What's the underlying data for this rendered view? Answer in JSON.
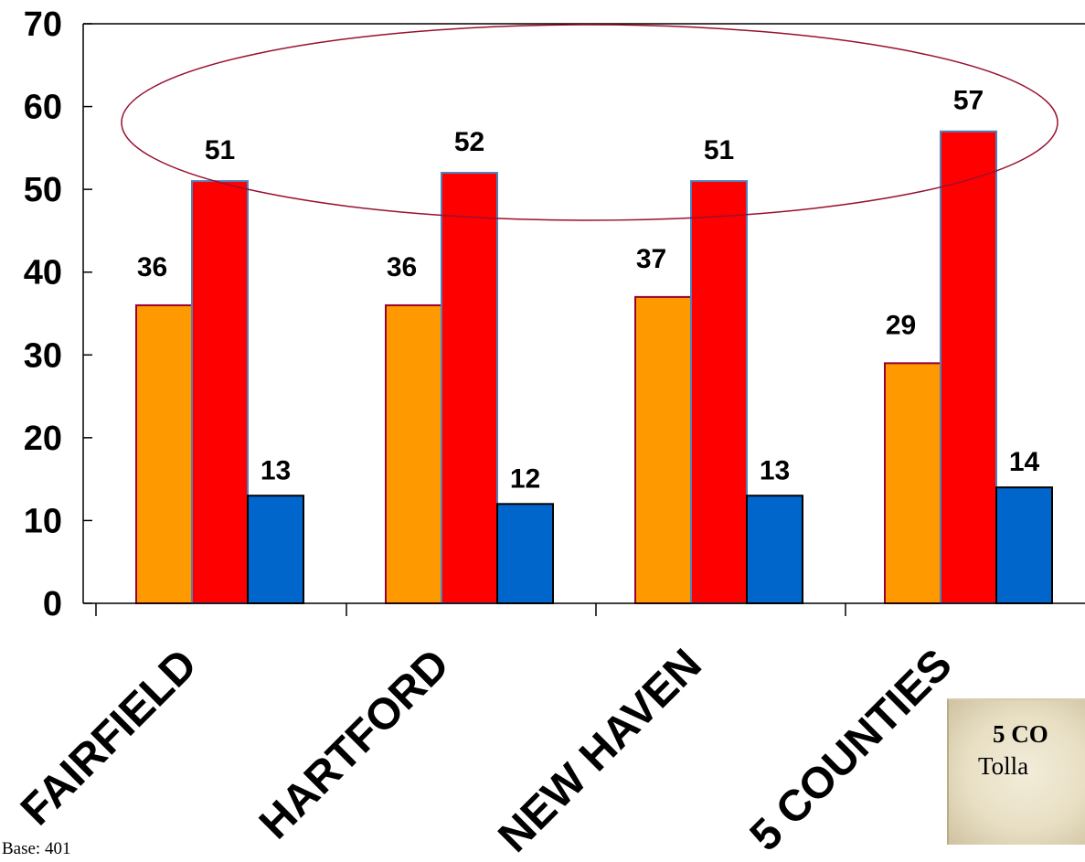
{
  "chart_data": {
    "type": "bar",
    "categories": [
      "FAIRFIELD",
      "HARTFORD",
      "NEW HAVEN",
      "5 COUNTIES"
    ],
    "series": [
      {
        "values": [
          36,
          36,
          37,
          29
        ],
        "color": "#FF9900",
        "border": "#990033"
      },
      {
        "values": [
          51,
          52,
          51,
          57
        ],
        "color": "#FF0000",
        "border": "#4F81BD"
      },
      {
        "values": [
          13,
          12,
          13,
          14
        ],
        "color": "#0066CC",
        "border": "#000000"
      }
    ],
    "yticks": [
      0,
      10,
      20,
      30,
      40,
      50,
      60,
      70
    ],
    "ylim": [
      0,
      70
    ],
    "grid": false,
    "highlight_ellipse_color": "#99102E"
  },
  "base_note": "Base: 401",
  "note_box": {
    "title": "5 CO",
    "text": "Tolla"
  }
}
